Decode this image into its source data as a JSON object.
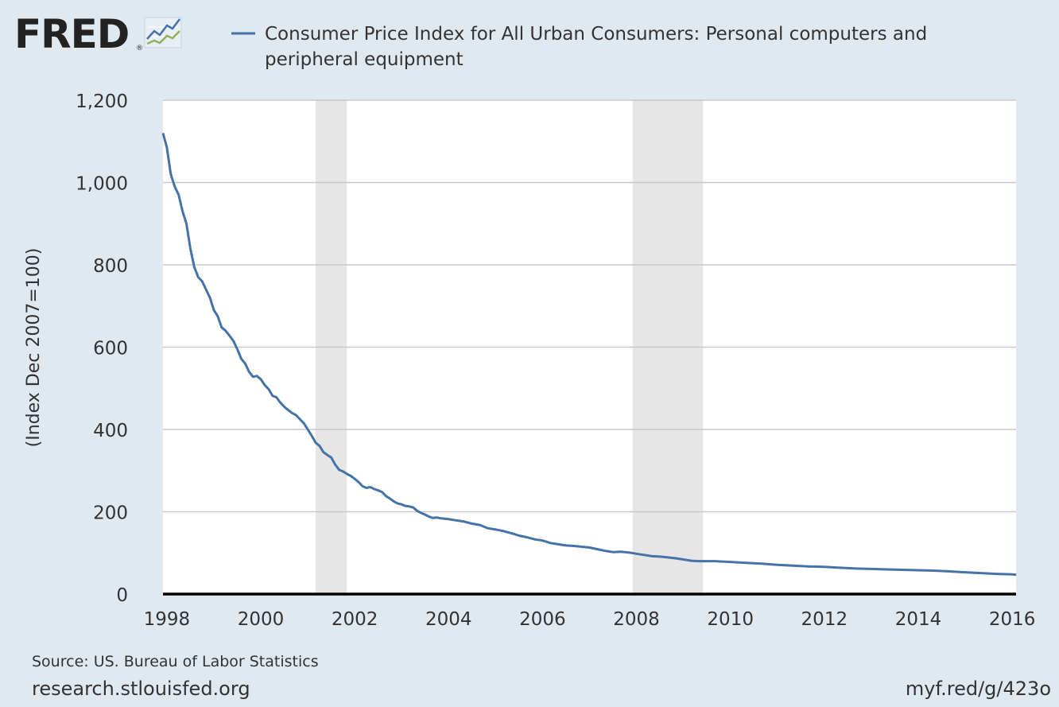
{
  "brand": {
    "logo_text": "FRED",
    "registered_mark": "®"
  },
  "footer": {
    "source": "Source: US. Bureau of Labor Statistics",
    "site": "research.stlouisfed.org",
    "short_link": "myf.red/g/423o"
  },
  "colors": {
    "background": "#e1e9f0",
    "plot_background": "#ffffff",
    "series": "#4572a7",
    "recession": "#e6e6e6",
    "grid": "#c8c8c8",
    "axis_text": "#333333",
    "baseline": "#000000"
  },
  "chart_data": {
    "type": "line",
    "title": "Consumer Price Index for All Urban Consumers: Personal computers and peripheral equipment",
    "title_lines": [
      "Consumer Price Index for All Urban Consumers: Personal computers and",
      "peripheral equipment"
    ],
    "xlabel": "",
    "ylabel": "(Index Dec 2007=100)",
    "x_range": [
      1997.917,
      2016.083
    ],
    "ylim": [
      0,
      1200
    ],
    "y_ticks": [
      0,
      200,
      400,
      600,
      800,
      1000,
      1200
    ],
    "y_tick_labels": [
      "0",
      "200",
      "400",
      "600",
      "800",
      "1,000",
      "1,200"
    ],
    "x_ticks": [
      1998,
      2000,
      2002,
      2004,
      2006,
      2008,
      2010,
      2012,
      2014,
      2016
    ],
    "x_tick_labels": [
      "1998",
      "2000",
      "2002",
      "2004",
      "2006",
      "2008",
      "2010",
      "2012",
      "2014",
      "2016"
    ],
    "grid": true,
    "legend": "top",
    "recessions": [
      {
        "start": 2001.167,
        "end": 2001.833
      },
      {
        "start": 2007.917,
        "end": 2009.417
      }
    ],
    "series": [
      {
        "name": "Consumer Price Index for All Urban Consumers: Personal computers and peripheral equipment",
        "x": [
          1997.917,
          1998.0,
          1998.083,
          1998.167,
          1998.25,
          1998.333,
          1998.417,
          1998.5,
          1998.583,
          1998.667,
          1998.75,
          1998.833,
          1998.917,
          1999.0,
          1999.083,
          1999.167,
          1999.25,
          1999.333,
          1999.417,
          1999.5,
          1999.583,
          1999.667,
          1999.75,
          1999.833,
          1999.917,
          2000.0,
          2000.083,
          2000.167,
          2000.25,
          2000.333,
          2000.417,
          2000.5,
          2000.583,
          2000.667,
          2000.75,
          2000.833,
          2000.917,
          2001.0,
          2001.083,
          2001.167,
          2001.25,
          2001.333,
          2001.417,
          2001.5,
          2001.583,
          2001.667,
          2001.75,
          2001.833,
          2001.917,
          2002.0,
          2002.083,
          2002.167,
          2002.25,
          2002.333,
          2002.417,
          2002.5,
          2002.583,
          2002.667,
          2002.75,
          2002.833,
          2002.917,
          2003.0,
          2003.083,
          2003.167,
          2003.25,
          2003.333,
          2003.417,
          2003.5,
          2003.583,
          2003.667,
          2003.75,
          2003.833,
          2003.917,
          2004.0,
          2004.167,
          2004.333,
          2004.5,
          2004.667,
          2004.833,
          2005.0,
          2005.167,
          2005.333,
          2005.5,
          2005.667,
          2005.833,
          2006.0,
          2006.167,
          2006.333,
          2006.5,
          2006.667,
          2006.833,
          2007.0,
          2007.167,
          2007.333,
          2007.5,
          2007.667,
          2007.833,
          2008.0,
          2008.167,
          2008.333,
          2008.5,
          2008.667,
          2008.833,
          2009.0,
          2009.167,
          2009.333,
          2009.5,
          2009.667,
          2009.833,
          2010.0,
          2010.333,
          2010.667,
          2011.0,
          2011.333,
          2011.667,
          2012.0,
          2012.333,
          2012.667,
          2013.0,
          2013.333,
          2013.667,
          2014.0,
          2014.333,
          2014.667,
          2015.0,
          2015.333,
          2015.667,
          2016.0,
          2016.083
        ],
        "values": [
          1120,
          1085,
          1020,
          990,
          970,
          930,
          900,
          840,
          795,
          770,
          760,
          740,
          720,
          690,
          675,
          648,
          640,
          628,
          615,
          595,
          572,
          560,
          540,
          528,
          530,
          522,
          508,
          498,
          482,
          478,
          465,
          455,
          447,
          440,
          435,
          425,
          415,
          400,
          385,
          368,
          360,
          345,
          338,
          332,
          315,
          302,
          298,
          292,
          287,
          280,
          272,
          262,
          258,
          260,
          255,
          252,
          248,
          238,
          232,
          225,
          220,
          218,
          214,
          213,
          210,
          202,
          197,
          193,
          188,
          185,
          186,
          184,
          183,
          182,
          179,
          176,
          171,
          168,
          160,
          157,
          153,
          148,
          142,
          138,
          133,
          130,
          124,
          121,
          118,
          117,
          115,
          113,
          109,
          105,
          102,
          103,
          101,
          98,
          95,
          92,
          91,
          89,
          87,
          84,
          81,
          80,
          80,
          80,
          79,
          78,
          76,
          74,
          71,
          69,
          67,
          66,
          64,
          62,
          61,
          60,
          59,
          58,
          57,
          55,
          53,
          51,
          49,
          48,
          47
        ]
      }
    ]
  }
}
